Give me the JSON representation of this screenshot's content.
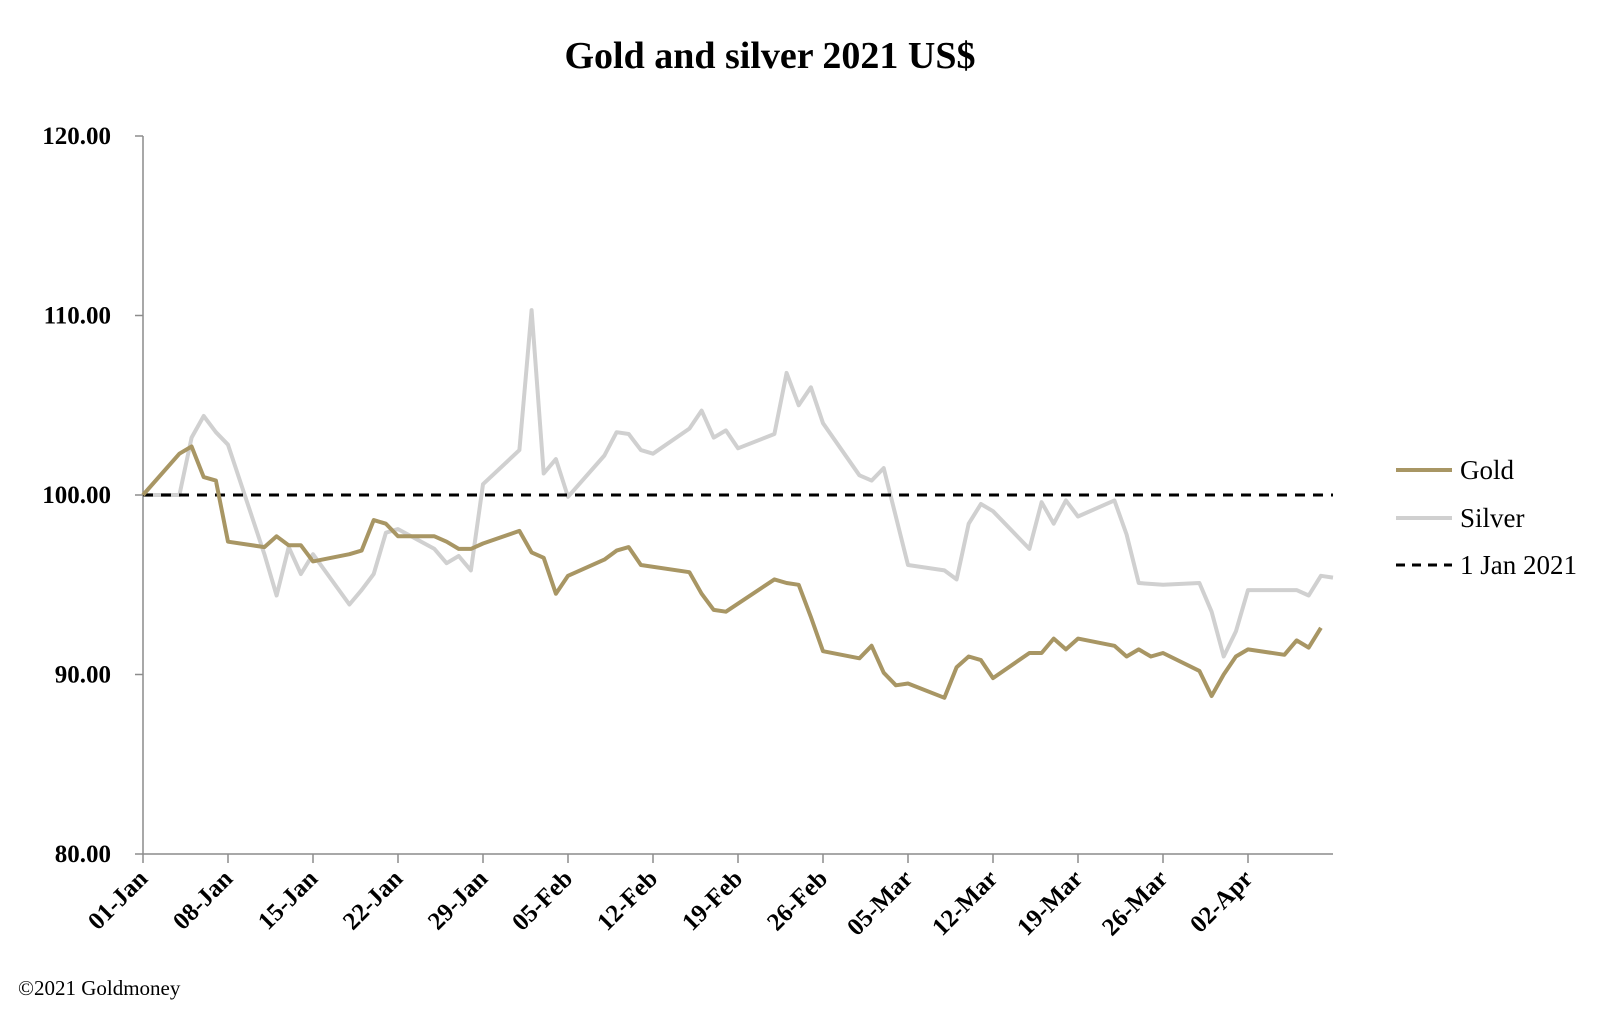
{
  "chart_data": {
    "type": "line",
    "title": "Gold and silver 2021  US$",
    "xlabel": "",
    "ylabel": "",
    "ylim": [
      80,
      120
    ],
    "yticks": [
      "80.00",
      "90.00",
      "100.00",
      "110.00",
      "120.00"
    ],
    "x_range": [
      "2021-01-01",
      "2021-04-09"
    ],
    "xtick_labels": [
      "01-Jan",
      "08-Jan",
      "15-Jan",
      "22-Jan",
      "29-Jan",
      "05-Feb",
      "12-Feb",
      "19-Feb",
      "26-Feb",
      "05-Mar",
      "12-Mar",
      "19-Mar",
      "26-Mar",
      "02-Apr"
    ],
    "legend_position": "right",
    "grid": false,
    "series": [
      {
        "name": "Gold",
        "color": "#a89664",
        "points": [
          [
            "2021-01-01",
            100.0
          ],
          [
            "2021-01-04",
            102.3
          ],
          [
            "2021-01-05",
            102.7
          ],
          [
            "2021-01-06",
            101.0
          ],
          [
            "2021-01-07",
            100.8
          ],
          [
            "2021-01-08",
            97.4
          ],
          [
            "2021-01-11",
            97.1
          ],
          [
            "2021-01-12",
            97.7
          ],
          [
            "2021-01-13",
            97.2
          ],
          [
            "2021-01-14",
            97.2
          ],
          [
            "2021-01-15",
            96.3
          ],
          [
            "2021-01-18",
            96.7
          ],
          [
            "2021-01-19",
            96.9
          ],
          [
            "2021-01-20",
            98.6
          ],
          [
            "2021-01-21",
            98.4
          ],
          [
            "2021-01-22",
            97.7
          ],
          [
            "2021-01-25",
            97.7
          ],
          [
            "2021-01-26",
            97.4
          ],
          [
            "2021-01-27",
            97.0
          ],
          [
            "2021-01-28",
            97.0
          ],
          [
            "2021-01-29",
            97.3
          ],
          [
            "2021-02-01",
            98.0
          ],
          [
            "2021-02-02",
            96.8
          ],
          [
            "2021-02-03",
            96.5
          ],
          [
            "2021-02-04",
            94.5
          ],
          [
            "2021-02-05",
            95.5
          ],
          [
            "2021-02-08",
            96.4
          ],
          [
            "2021-02-09",
            96.9
          ],
          [
            "2021-02-10",
            97.1
          ],
          [
            "2021-02-11",
            96.1
          ],
          [
            "2021-02-15",
            95.7
          ],
          [
            "2021-02-16",
            94.5
          ],
          [
            "2021-02-17",
            93.6
          ],
          [
            "2021-02-18",
            93.5
          ],
          [
            "2021-02-22",
            95.3
          ],
          [
            "2021-02-23",
            95.1
          ],
          [
            "2021-02-24",
            95.0
          ],
          [
            "2021-02-25",
            93.2
          ],
          [
            "2021-02-26",
            91.3
          ],
          [
            "2021-03-01",
            90.9
          ],
          [
            "2021-03-02",
            91.6
          ],
          [
            "2021-03-03",
            90.1
          ],
          [
            "2021-03-04",
            89.4
          ],
          [
            "2021-03-05",
            89.5
          ],
          [
            "2021-03-08",
            88.7
          ],
          [
            "2021-03-09",
            90.4
          ],
          [
            "2021-03-10",
            91.0
          ],
          [
            "2021-03-11",
            90.8
          ],
          [
            "2021-03-12",
            89.8
          ],
          [
            "2021-03-15",
            91.2
          ],
          [
            "2021-03-16",
            91.2
          ],
          [
            "2021-03-17",
            92.0
          ],
          [
            "2021-03-18",
            91.4
          ],
          [
            "2021-03-19",
            92.0
          ],
          [
            "2021-03-22",
            91.6
          ],
          [
            "2021-03-23",
            91.0
          ],
          [
            "2021-03-24",
            91.4
          ],
          [
            "2021-03-25",
            91.0
          ],
          [
            "2021-03-26",
            91.2
          ],
          [
            "2021-03-29",
            90.2
          ],
          [
            "2021-03-30",
            88.8
          ],
          [
            "2021-03-31",
            90.0
          ],
          [
            "2021-04-01",
            91.0
          ],
          [
            "2021-04-02",
            91.4
          ],
          [
            "2021-04-05",
            91.1
          ],
          [
            "2021-04-06",
            91.9
          ],
          [
            "2021-04-07",
            91.5
          ],
          [
            "2021-04-08",
            92.6
          ]
        ]
      },
      {
        "name": "Silver",
        "color": "#d0d0d0",
        "points": [
          [
            "2021-01-01",
            100.0
          ],
          [
            "2021-01-04",
            100.0
          ],
          [
            "2021-01-05",
            103.2
          ],
          [
            "2021-01-06",
            104.4
          ],
          [
            "2021-01-07",
            103.5
          ],
          [
            "2021-01-08",
            102.8
          ],
          [
            "2021-01-11",
            96.7
          ],
          [
            "2021-01-12",
            94.4
          ],
          [
            "2021-01-13",
            97.1
          ],
          [
            "2021-01-14",
            95.6
          ],
          [
            "2021-01-15",
            96.7
          ],
          [
            "2021-01-18",
            93.9
          ],
          [
            "2021-01-19",
            94.7
          ],
          [
            "2021-01-20",
            95.6
          ],
          [
            "2021-01-21",
            97.9
          ],
          [
            "2021-01-22",
            98.1
          ],
          [
            "2021-01-25",
            97.0
          ],
          [
            "2021-01-26",
            96.2
          ],
          [
            "2021-01-27",
            96.6
          ],
          [
            "2021-01-28",
            95.8
          ],
          [
            "2021-01-29",
            100.6
          ],
          [
            "2021-02-01",
            102.5
          ],
          [
            "2021-02-02",
            110.3
          ],
          [
            "2021-02-03",
            101.2
          ],
          [
            "2021-02-04",
            102.0
          ],
          [
            "2021-02-05",
            99.9
          ],
          [
            "2021-02-08",
            102.2
          ],
          [
            "2021-02-09",
            103.5
          ],
          [
            "2021-02-10",
            103.4
          ],
          [
            "2021-02-11",
            102.5
          ],
          [
            "2021-02-12",
            102.3
          ],
          [
            "2021-02-15",
            103.7
          ],
          [
            "2021-02-16",
            104.7
          ],
          [
            "2021-02-17",
            103.2
          ],
          [
            "2021-02-18",
            103.6
          ],
          [
            "2021-02-19",
            102.6
          ],
          [
            "2021-02-22",
            103.4
          ],
          [
            "2021-02-23",
            106.8
          ],
          [
            "2021-02-24",
            105.0
          ],
          [
            "2021-02-25",
            106.0
          ],
          [
            "2021-02-26",
            104.0
          ],
          [
            "2021-03-01",
            101.1
          ],
          [
            "2021-03-02",
            100.8
          ],
          [
            "2021-03-03",
            101.5
          ],
          [
            "2021-03-05",
            96.1
          ],
          [
            "2021-03-08",
            95.8
          ],
          [
            "2021-03-09",
            95.3
          ],
          [
            "2021-03-10",
            98.4
          ],
          [
            "2021-03-11",
            99.5
          ],
          [
            "2021-03-12",
            99.1
          ],
          [
            "2021-03-15",
            97.0
          ],
          [
            "2021-03-16",
            99.6
          ],
          [
            "2021-03-17",
            98.4
          ],
          [
            "2021-03-18",
            99.7
          ],
          [
            "2021-03-19",
            98.8
          ],
          [
            "2021-03-22",
            99.7
          ],
          [
            "2021-03-23",
            97.8
          ],
          [
            "2021-03-24",
            95.1
          ],
          [
            "2021-03-26",
            95.0
          ],
          [
            "2021-03-29",
            95.1
          ],
          [
            "2021-03-30",
            93.5
          ],
          [
            "2021-03-31",
            91.0
          ],
          [
            "2021-04-01",
            92.4
          ],
          [
            "2021-04-02",
            94.7
          ],
          [
            "2021-04-06",
            94.7
          ],
          [
            "2021-04-07",
            94.4
          ],
          [
            "2021-04-08",
            95.5
          ],
          [
            "2021-04-09",
            95.4
          ]
        ]
      }
    ],
    "reference_line": {
      "name": "1 Jan 2021",
      "value": 100.0,
      "color": "#000000",
      "style": "dashed"
    }
  },
  "footer": {
    "copyright": "©2021 Goldmoney"
  }
}
